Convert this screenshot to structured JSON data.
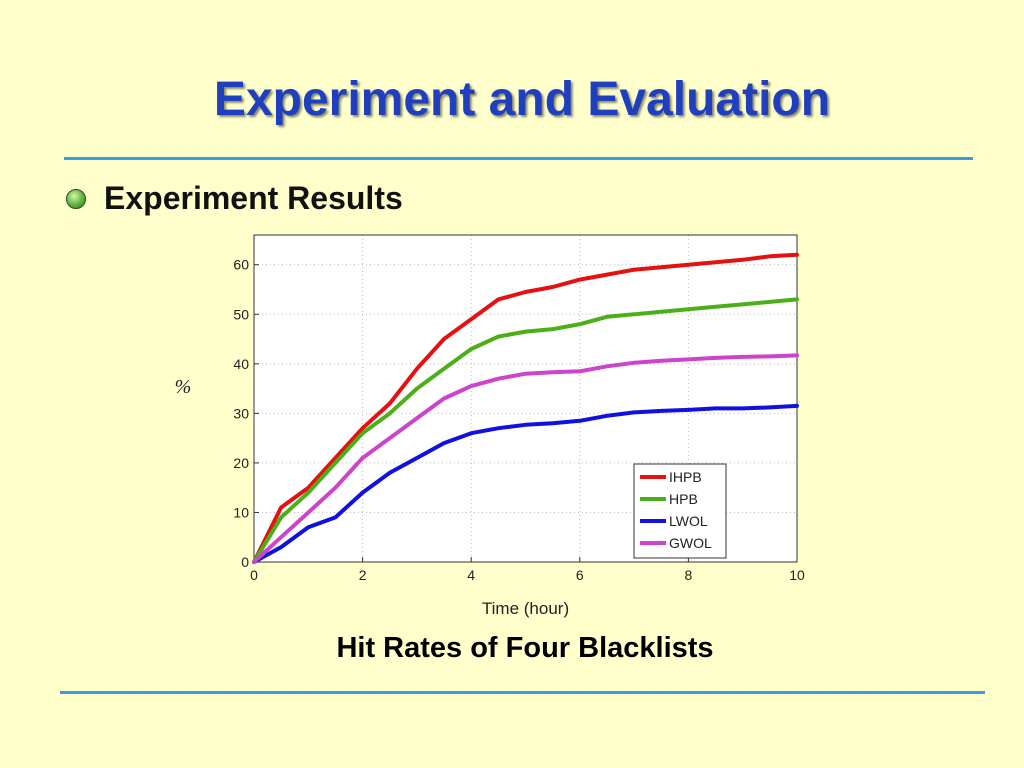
{
  "title": "Experiment and Evaluation",
  "bullet": "Experiment Results",
  "caption": "Hit Rates of Four Blacklists",
  "chart_data": {
    "type": "line",
    "title": "",
    "xlabel": "Time (hour)",
    "ylabel": "%",
    "xlim": [
      0,
      10
    ],
    "ylim": [
      0,
      66
    ],
    "xticks": [
      0,
      2,
      4,
      6,
      8,
      10
    ],
    "yticks": [
      0,
      10,
      20,
      30,
      40,
      50,
      60
    ],
    "grid": true,
    "legend": "bottom-right",
    "x": [
      0,
      0.5,
      1,
      1.5,
      2,
      2.5,
      3,
      3.5,
      4,
      4.5,
      5,
      5.5,
      6,
      6.5,
      7,
      7.5,
      8,
      8.5,
      9,
      9.5,
      10
    ],
    "series": [
      {
        "name": "IHPB",
        "color": "#e51111",
        "values": [
          0,
          11,
          15,
          21,
          27,
          32,
          39,
          45,
          49,
          53,
          54.5,
          55.5,
          57,
          58,
          59,
          59.5,
          60,
          60.5,
          61,
          61.7,
          62
        ]
      },
      {
        "name": "HPB",
        "color": "#4caf1a",
        "values": [
          0,
          9,
          14,
          20,
          26,
          30,
          35,
          39,
          43,
          45.5,
          46.5,
          47,
          48,
          49.5,
          50,
          50.5,
          51,
          51.5,
          52,
          52.5,
          53
        ]
      },
      {
        "name": "LWOL",
        "color": "#1010e0",
        "values": [
          0,
          3,
          7,
          9,
          14,
          18,
          21,
          24,
          26,
          27,
          27.7,
          28,
          28.5,
          29.5,
          30.2,
          30.5,
          30.7,
          31,
          31,
          31.2,
          31.5
        ]
      },
      {
        "name": "GWOL",
        "color": "#cc44cc",
        "values": [
          0,
          5,
          10,
          15,
          21,
          25,
          29,
          33,
          35.5,
          37,
          38,
          38.3,
          38.5,
          39.5,
          40.2,
          40.6,
          40.9,
          41.2,
          41.4,
          41.5,
          41.7
        ]
      }
    ]
  }
}
